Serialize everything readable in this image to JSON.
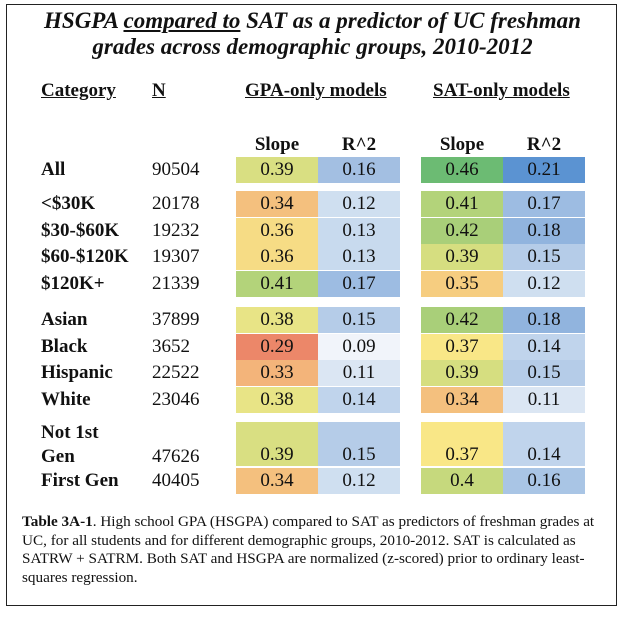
{
  "title": {
    "line1_part1": "HSGPA ",
    "line1_underlined": "compared to",
    "line1_part2": " SAT as a predictor of UC freshman",
    "line2": "grades across demographic groups, 2010-2012"
  },
  "headers": {
    "category": "Category",
    "n": "N",
    "gpa_models": "GPA-only models",
    "sat_models": "SAT-only models",
    "slope": "Slope",
    "r2": "R^2"
  },
  "chart_data": {
    "type": "table",
    "title": "HSGPA compared to SAT as a predictor of UC freshman grades across demographic groups, 2010-2012",
    "columns": [
      "Category",
      "N",
      "GPA Slope",
      "GPA R^2",
      "SAT Slope",
      "SAT R^2"
    ],
    "rows": [
      {
        "label": "All",
        "n": "90504",
        "gpa_slope": "0.39",
        "gpa_r2": "0.16",
        "sat_slope": "0.46",
        "sat_r2": "0.21",
        "colors": [
          "#d9df82",
          "#a3bfe2",
          "#6cbb73",
          "#5b93d2"
        ]
      },
      {
        "label": "<$30K",
        "n": "20178",
        "gpa_slope": "0.34",
        "gpa_r2": "0.12",
        "sat_slope": "0.41",
        "sat_r2": "0.17",
        "colors": [
          "#f4c07e",
          "#cfdff0",
          "#b3d37a",
          "#9dbce2"
        ]
      },
      {
        "label": "$30-$60K",
        "n": "19232",
        "gpa_slope": "0.36",
        "gpa_r2": "0.13",
        "sat_slope": "0.42",
        "sat_r2": "0.18",
        "colors": [
          "#f6dc85",
          "#c8daee",
          "#a9cf79",
          "#91b4de"
        ]
      },
      {
        "label": "$60-$120K",
        "n": "19307",
        "gpa_slope": "0.36",
        "gpa_r2": "0.13",
        "sat_slope": "0.39",
        "sat_r2": "0.15",
        "colors": [
          "#f6dc85",
          "#c8daee",
          "#d6de80",
          "#b5cce8"
        ]
      },
      {
        "label": "$120K+",
        "n": "21339",
        "gpa_slope": "0.41",
        "gpa_r2": "0.17",
        "sat_slope": "0.35",
        "sat_r2": "0.12",
        "colors": [
          "#b3d37a",
          "#9dbce2",
          "#f6cd80",
          "#cfdff0"
        ]
      },
      {
        "label": "Asian",
        "n": "37899",
        "gpa_slope": "0.38",
        "gpa_r2": "0.15",
        "sat_slope": "0.42",
        "sat_r2": "0.18",
        "colors": [
          "#e8e486",
          "#b5cce8",
          "#a9cf79",
          "#91b4de"
        ]
      },
      {
        "label": "Black",
        "n": "3652",
        "gpa_slope": "0.29",
        "gpa_r2": "0.09",
        "sat_slope": "0.37",
        "sat_r2": "0.14",
        "colors": [
          "#ec8769",
          "#f1f4fa",
          "#f9e787",
          "#c0d4ec"
        ]
      },
      {
        "label": "Hispanic",
        "n": "22522",
        "gpa_slope": "0.33",
        "gpa_r2": "0.11",
        "sat_slope": "0.39",
        "sat_r2": "0.15",
        "colors": [
          "#f3b47a",
          "#dbe6f3",
          "#d6de80",
          "#b5cce8"
        ]
      },
      {
        "label": "White",
        "n": "23046",
        "gpa_slope": "0.38",
        "gpa_r2": "0.14",
        "sat_slope": "0.34",
        "sat_r2": "0.11",
        "colors": [
          "#e8e486",
          "#c0d4ec",
          "#f4c07e",
          "#dbe6f3"
        ]
      },
      {
        "label": "Not 1st\nGen",
        "label1": "Not 1st",
        "label2": "Gen",
        "n": "47626",
        "gpa_slope": "0.39",
        "gpa_r2": "0.15",
        "sat_slope": "0.37",
        "sat_r2": "0.14",
        "colors": [
          "#d9df82",
          "#b5cce8",
          "#f9e787",
          "#c0d4ec"
        ]
      },
      {
        "label": "First Gen",
        "n": "40405",
        "gpa_slope": "0.34",
        "gpa_r2": "0.12",
        "sat_slope": "0.4",
        "sat_r2": "0.16",
        "colors": [
          "#f4c07e",
          "#cfdff0",
          "#c6d97d",
          "#a9c5e5"
        ]
      }
    ]
  },
  "caption": {
    "label": "Table 3A-1",
    "text": ". High school GPA (HSGPA) compared to SAT as predictors of freshman grades at UC, for all students and for different demographic groups, 2010-2012. SAT is calculated as SATRW + SATRM. Both SAT and HSGPA are normalized (z-scored) prior to ordinary least-squares regression."
  }
}
